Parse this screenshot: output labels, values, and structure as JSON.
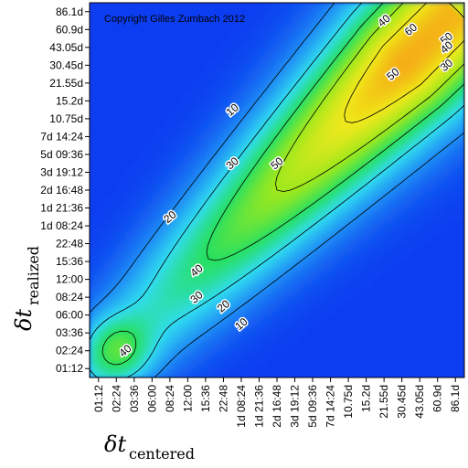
{
  "chart_data": {
    "type": "heatmap",
    "copyright": "Copyright Gilles Zumbach 2012",
    "xlabel": "δt",
    "xlabel_sub": "centered",
    "ylabel": "δt",
    "ylabel_sub": "realized",
    "x_ticks": [
      "01:12",
      "02:24",
      "03:36",
      "06:00",
      "08:24",
      "12:00",
      "15:36",
      "22:48",
      "1d 08:24",
      "1d 21:36",
      "2d 16:48",
      "3d 19:12",
      "5d 09:36",
      "7d 14:24",
      "10.75d",
      "15.2d",
      "21.55d",
      "30.45d",
      "43.05d",
      "60.9d",
      "86.1d"
    ],
    "y_ticks": [
      "01:12",
      "02:24",
      "03:36",
      "06:00",
      "08:24",
      "12:00",
      "15:36",
      "22:48",
      "1d 08:24",
      "1d 21:36",
      "2d 16:48",
      "3d 19:12",
      "5d 09:36",
      "7d 14:24",
      "10.75d",
      "15.2d",
      "21.55d",
      "30.45d",
      "43.05d",
      "60.9d",
      "86.1d"
    ],
    "color_scale": [
      "#0a3cf0",
      "#1f8cf5",
      "#30dcf0",
      "#28e060",
      "#9ee81c",
      "#f0e81a",
      "#f5a014",
      "#e63214"
    ],
    "z_range": [
      0,
      70
    ],
    "contour_levels": [
      10,
      20,
      30,
      40,
      50,
      60
    ],
    "contour_labels": [
      {
        "text": "10",
        "x": 7.5,
        "y": 14.5
      },
      {
        "text": "20",
        "x": 4.0,
        "y": 8.5
      },
      {
        "text": "30",
        "x": 7.5,
        "y": 11.5
      },
      {
        "text": "40",
        "x": 5.5,
        "y": 5.5
      },
      {
        "text": "30",
        "x": 5.5,
        "y": 4.0
      },
      {
        "text": "20",
        "x": 7.0,
        "y": 3.5
      },
      {
        "text": "10",
        "x": 8.0,
        "y": 2.5
      },
      {
        "text": "40",
        "x": 1.5,
        "y": 1.0
      },
      {
        "text": "50",
        "x": 10.0,
        "y": 11.5
      },
      {
        "text": "40",
        "x": 16.0,
        "y": 19.5
      },
      {
        "text": "60",
        "x": 17.5,
        "y": 19.0
      },
      {
        "text": "50",
        "x": 16.5,
        "y": 16.5
      },
      {
        "text": "50",
        "x": 19.5,
        "y": 18.5
      },
      {
        "text": "40",
        "x": 19.5,
        "y": 18.0
      },
      {
        "text": "30",
        "x": 19.5,
        "y": 17.0
      }
    ]
  }
}
